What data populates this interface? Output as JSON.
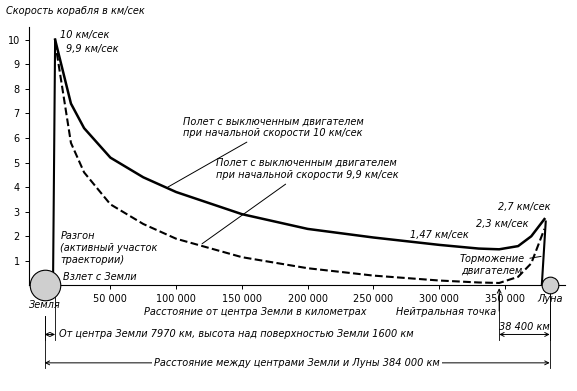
{
  "chart_data": {
    "type": "line",
    "y_label": "Скорость корабля в км/сек",
    "x_label": "Расстояние от центра Земли в километрах",
    "xlim": [
      -12000,
      396000
    ],
    "ylim": [
      0,
      10.5
    ],
    "xticks": [
      {
        "value": 50000,
        "label": "50 000"
      },
      {
        "value": 100000,
        "label": "100 000"
      },
      {
        "value": 150000,
        "label": "150 000"
      },
      {
        "value": 200000,
        "label": "200 000"
      },
      {
        "value": 250000,
        "label": "250 000"
      },
      {
        "value": 300000,
        "label": "300 000"
      },
      {
        "value": 350000,
        "label": "350 000"
      }
    ],
    "yticks": [
      1,
      2,
      3,
      4,
      5,
      6,
      7,
      8,
      9,
      10
    ],
    "grid": false,
    "series": [
      {
        "name": "Полет с выключенным двигателем\nпри начальной скорости 10 км/сек",
        "color": "#000000",
        "line_style": "solid",
        "x": [
          7970,
          20000,
          30000,
          50000,
          75000,
          100000,
          150000,
          200000,
          250000,
          300000,
          330000,
          345600,
          360000,
          370000,
          380000
        ],
        "values": [
          10,
          7.4,
          6.4,
          5.2,
          4.4,
          3.8,
          2.9,
          2.3,
          1.95,
          1.65,
          1.5,
          1.47,
          1.6,
          2.0,
          2.7
        ]
      },
      {
        "name": "Полет с выключенным двигателем\nпри начальной скорости 9,9 км/сек",
        "color": "#000000",
        "line_style": "dashed",
        "x": [
          7970,
          20000,
          30000,
          50000,
          75000,
          100000,
          150000,
          200000,
          250000,
          300000,
          330000,
          345600,
          360000,
          370000,
          380000
        ],
        "values": [
          9.9,
          5.8,
          4.6,
          3.3,
          2.5,
          1.9,
          1.15,
          0.7,
          0.4,
          0.2,
          0.12,
          0.1,
          0.35,
          0.9,
          2.3
        ]
      },
      {
        "name": "Разгон\n(активный участок\nтраектории)",
        "color": "#000000",
        "line_style": "solid",
        "x": [
          6371,
          7970
        ],
        "values": [
          0,
          10
        ]
      },
      {
        "name": "Торможение\nдвигателем",
        "color": "#000000",
        "line_style": "solid",
        "x": [
          381000,
          378000
        ],
        "values": [
          2.6,
          0
        ]
      }
    ],
    "annotations": [
      "10 км/сек",
      "9,9 км/сек",
      "1,47 км/сек",
      "2,3 км/сек",
      "2,7 км/сек",
      "Взлет с Земли"
    ],
    "neutral_point": {
      "text": "Нейтральная точка",
      "x": 345600
    },
    "bodies": [
      {
        "name": "Земля",
        "x": 0
      },
      {
        "name": "Луна",
        "x": 384000
      }
    ],
    "dimensions": [
      {
        "text": "От центра Земли 7970 км, высота над поверхностью Земли 1600 км",
        "from": 0,
        "to": 7970
      },
      {
        "text": "38 400 км",
        "from": 345600,
        "to": 384000
      },
      {
        "text": "Расстояние между центрами Земли и Луны 384 000 км",
        "from": 0,
        "to": 384000
      }
    ]
  }
}
